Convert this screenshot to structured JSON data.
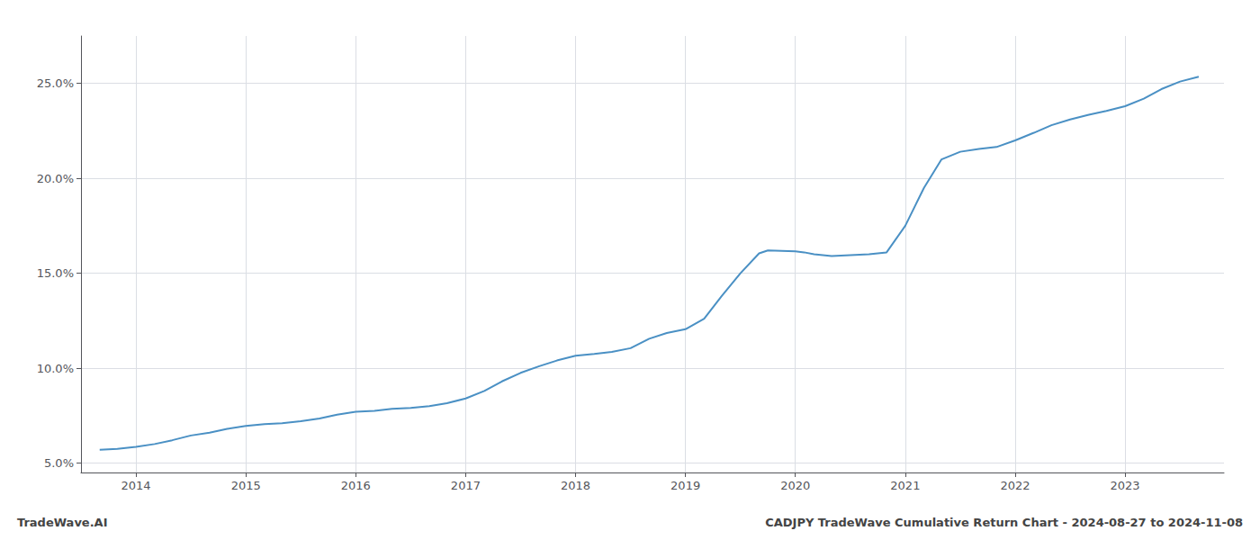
{
  "chart_data": {
    "type": "line",
    "title": "CADJPY TradeWave Cumulative Return Chart - 2024-08-27 to 2024-11-08",
    "annotations": [
      "TradeWave.AI"
    ],
    "color": "#4a90c4",
    "grid": true,
    "x": [
      2013.67,
      2013.83,
      2014.0,
      2014.17,
      2014.33,
      2014.5,
      2014.67,
      2014.83,
      2015.0,
      2015.17,
      2015.33,
      2015.5,
      2015.67,
      2015.83,
      2016.0,
      2016.17,
      2016.33,
      2016.5,
      2016.67,
      2016.83,
      2017.0,
      2017.17,
      2017.33,
      2017.5,
      2017.67,
      2017.83,
      2018.0,
      2018.17,
      2018.33,
      2018.5,
      2018.67,
      2018.83,
      2019.0,
      2019.17,
      2019.33,
      2019.5,
      2019.67,
      2019.75,
      2020.0,
      2020.08,
      2020.17,
      2020.33,
      2020.5,
      2020.67,
      2020.83,
      2021.0,
      2021.17,
      2021.33,
      2021.5,
      2021.67,
      2021.83,
      2022.0,
      2022.17,
      2022.33,
      2022.5,
      2022.67,
      2022.83,
      2023.0,
      2023.17,
      2023.33,
      2023.5,
      2023.67
    ],
    "values": [
      5.7,
      5.75,
      5.85,
      6.0,
      6.2,
      6.45,
      6.6,
      6.8,
      6.95,
      7.05,
      7.1,
      7.2,
      7.35,
      7.55,
      7.7,
      7.75,
      7.85,
      7.9,
      8.0,
      8.15,
      8.4,
      8.8,
      9.3,
      9.75,
      10.1,
      10.4,
      10.65,
      10.75,
      10.85,
      11.05,
      11.55,
      11.85,
      12.05,
      12.6,
      13.8,
      15.0,
      16.05,
      16.2,
      16.15,
      16.1,
      16.0,
      15.9,
      15.95,
      16.0,
      16.1,
      17.5,
      19.5,
      21.0,
      21.4,
      21.55,
      21.65,
      22.0,
      22.4,
      22.8,
      23.1,
      23.35,
      23.55,
      23.8,
      24.2,
      24.7,
      25.1,
      25.35
    ],
    "xlim": [
      2013.5,
      2023.9
    ],
    "xticks": [
      2014,
      2015,
      2016,
      2017,
      2018,
      2019,
      2020,
      2021,
      2022,
      2023
    ],
    "ylim": [
      4.5,
      27.5
    ],
    "yticks": [
      {
        "value": 5.0,
        "label": "5.0%"
      },
      {
        "value": 10.0,
        "label": "10.0%"
      },
      {
        "value": 15.0,
        "label": "15.0%"
      },
      {
        "value": 20.0,
        "label": "20.0%"
      },
      {
        "value": 25.0,
        "label": "25.0%"
      }
    ]
  }
}
